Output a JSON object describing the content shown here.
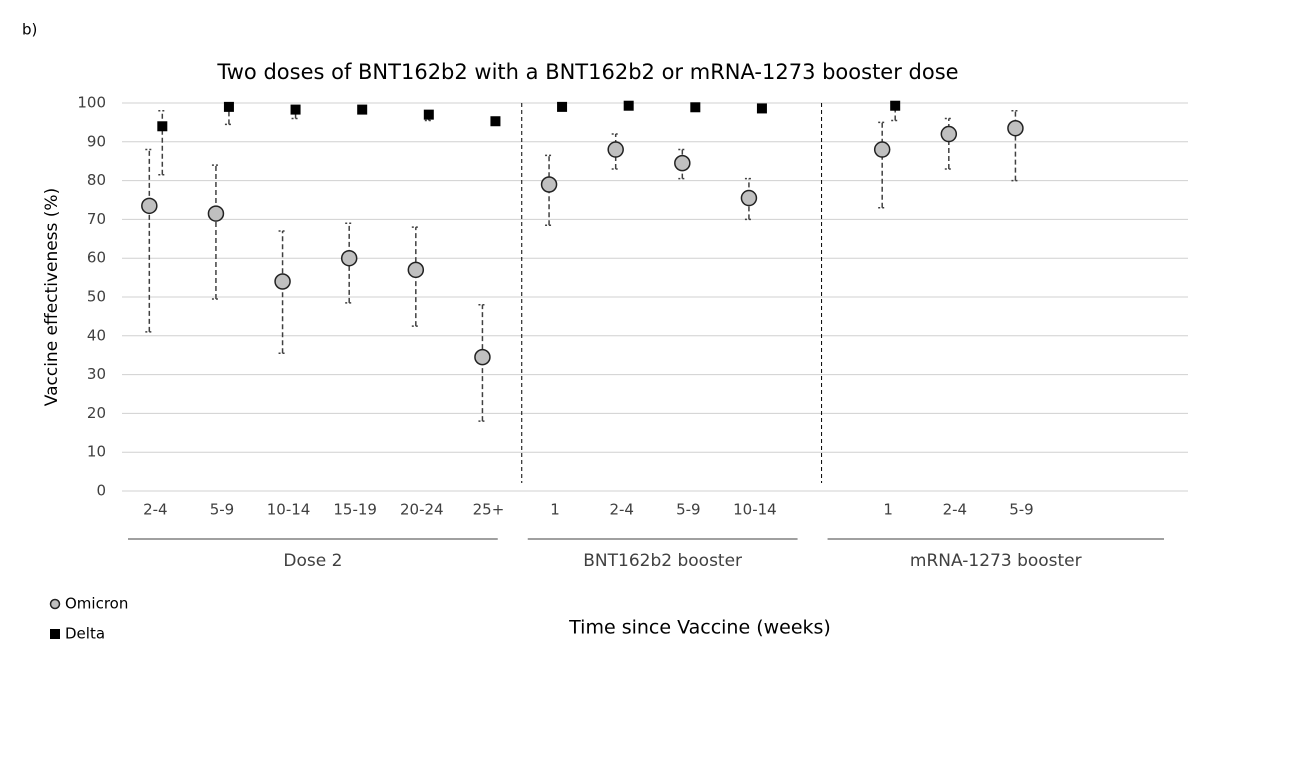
{
  "panel_label": "b)",
  "chart_data": {
    "type": "scatter",
    "title": "Two doses of BNT162b2 with a BNT162b2 or mRNA-1273 booster dose",
    "y_label": "Vaccine effectiveness (%)",
    "x_label": "Time since Vaccine (weeks)",
    "categories": [
      "2-4",
      "5-9",
      "10-14",
      "15-19",
      "20-24",
      "25+",
      "1",
      "2-4",
      "5-9",
      "10-14",
      null,
      "1",
      "2-4",
      "5-9",
      null,
      null
    ],
    "groups": [
      "Dose 2",
      "BNT162b2 booster",
      "mRNA-1273 booster"
    ],
    "series": [
      {
        "name": "Omicron",
        "color": "#c0c0c0",
        "marker": "circle",
        "values": [
          73.5,
          71.5,
          54,
          60,
          57,
          34.5,
          79,
          88,
          84.5,
          75.5,
          null,
          88,
          92,
          93.5,
          null,
          null
        ],
        "lower": [
          41,
          49.5,
          35.5,
          48.5,
          42.5,
          18,
          68.5,
          83,
          80.5,
          70,
          null,
          73,
          83,
          80,
          null,
          null
        ],
        "upper": [
          88,
          84,
          67,
          69,
          68,
          48,
          86.5,
          92,
          88,
          80.5,
          null,
          95,
          96,
          98,
          null,
          null
        ]
      },
      {
        "name": "Delta",
        "color": "#000000",
        "marker": "square",
        "values": [
          94,
          99,
          98.3,
          98.3,
          97,
          95.3,
          99,
          99.3,
          98.9,
          98.6,
          null,
          99.3,
          null,
          null,
          null,
          null
        ],
        "lower": [
          81.5,
          94.5,
          96,
          null,
          95.5,
          null,
          null,
          null,
          null,
          null,
          null,
          95.5,
          null,
          null,
          null,
          null
        ],
        "upper": [
          98,
          99.5,
          99,
          null,
          98,
          null,
          null,
          null,
          null,
          null,
          null,
          99.7,
          null,
          null,
          null,
          null
        ]
      }
    ],
    "ylim": [
      0,
      100
    ],
    "yticks": [
      0,
      10,
      20,
      30,
      40,
      50,
      60,
      70,
      80,
      90,
      100
    ],
    "grid": true
  }
}
